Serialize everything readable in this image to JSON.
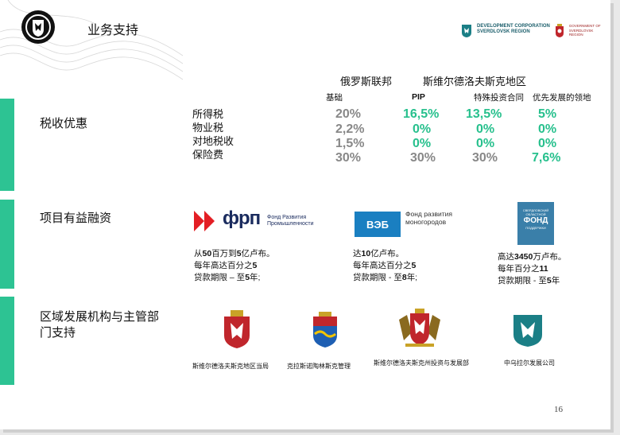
{
  "header": {
    "title": "业务支持",
    "org_line1": "DEVELOPMENT CORPORATION",
    "org_line2": "SVERDLOVSK REGION",
    "gov_line1": "GOVERNMENT OF",
    "gov_line2": "SVERDLOVSK",
    "gov_line3": "REGION"
  },
  "colors": {
    "accent": "#2dc393",
    "value_gray": "#888888",
    "value_teal": "#27c08d"
  },
  "tax": {
    "label": "税收优惠",
    "group_russia": "俄罗斯联邦",
    "group_region": "斯维尔德洛夫斯克地区",
    "col_basic": "基础",
    "col_pip": "PIP",
    "col_special": "特殊投资合同",
    "col_priority": "优先发展的领地",
    "rows": [
      {
        "name": "所得税",
        "basic": "20%",
        "pip": "16,5%",
        "special": "13,5%",
        "priority": "5%"
      },
      {
        "name": "物业税",
        "basic": "2,2%",
        "pip": "0%",
        "special": "0%",
        "priority": "0%"
      },
      {
        "name": "对地税收",
        "basic": "1,5%",
        "pip": "0%",
        "special": "0%",
        "priority": "0%"
      },
      {
        "name": "保险费",
        "basic": "30%",
        "pip": "30%",
        "special": "30%",
        "priority": "7,6%"
      }
    ]
  },
  "financing": {
    "label": "项目有益融资",
    "frp": {
      "logo": "фрп",
      "logo_sub1": "Фонд Развития",
      "logo_sub2": "Промышленности",
      "l1a": "从",
      "l1b": "50",
      "l1c": "百万到",
      "l1d": "5",
      "l1e": "亿卢布。",
      "l2a": "每年高达百分之",
      "l2b": "5",
      "l3a": "贷款期限 – 至",
      "l3b": "5",
      "l3c": "年;"
    },
    "veb": {
      "logo": "ВЭБ",
      "logo_sub1": "Фонд развития",
      "logo_sub2": "моногородов",
      "l1a": "达",
      "l1b": "10",
      "l1c": "亿卢布。",
      "l2a": "每年高达百分之",
      "l2b": "5",
      "l3a": "贷款期限 - 至",
      "l3b": "8",
      "l3c": "年;"
    },
    "sofp": {
      "logo_l1": "СВЕРДЛОВСКИЙ",
      "logo_l2": "ОБЛАСТНОЙ",
      "logo_l3": "ФОНД",
      "logo_l4": "ПОДДЕРЖКИ",
      "l1a": "高达",
      "l1b": "3450",
      "l1c": "万卢布。",
      "l2a": "每年百分之",
      "l2b": "11",
      "l3a": "贷款期限 - 至",
      "l3b": "5",
      "l3c": "年"
    }
  },
  "institutions": {
    "label_line1": "区域发展机构与主管部",
    "label_line2": "门支持",
    "items": [
      {
        "name": "斯维尔德洛夫斯克地区当局"
      },
      {
        "name": "克拉斯诺陶林斯克管理"
      },
      {
        "name": "斯维尔德洛夫斯克州投资与发展部"
      },
      {
        "name": "中乌拉尔发展公司"
      }
    ]
  },
  "page_number": "16"
}
